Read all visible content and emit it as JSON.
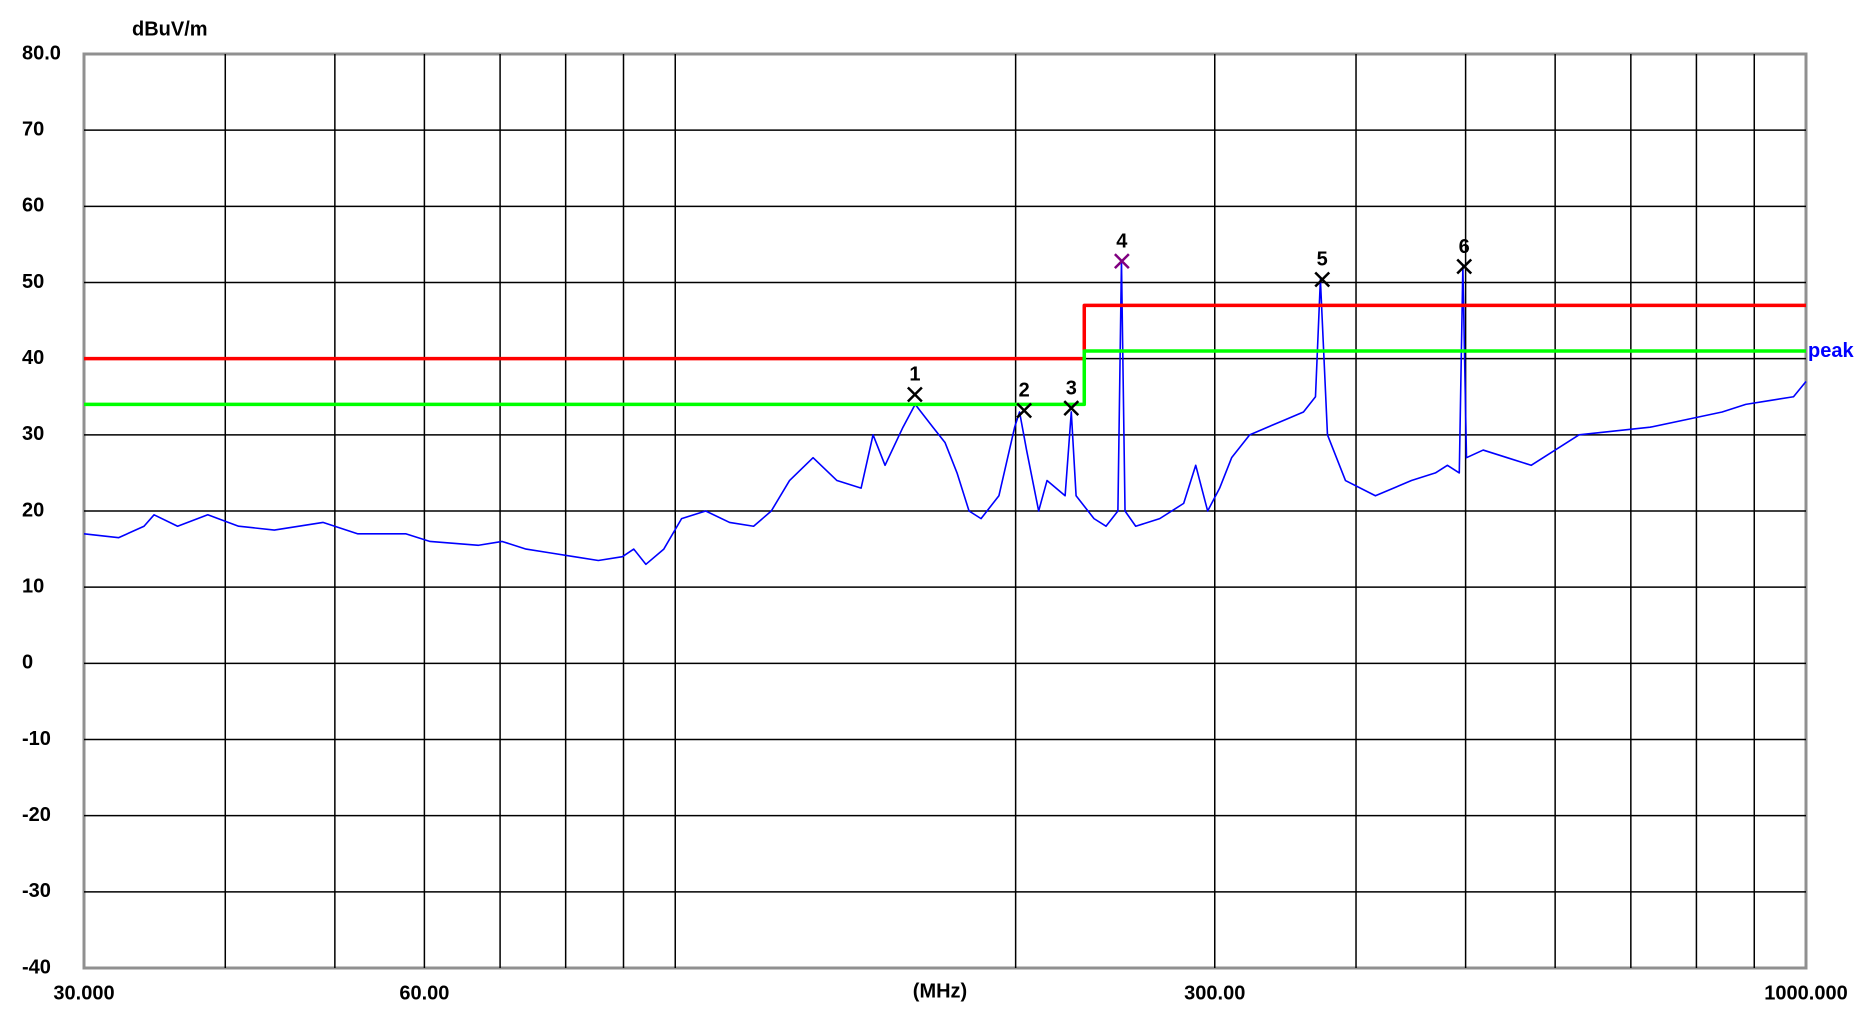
{
  "chart_data": {
    "type": "line",
    "y_label": "dBuV/m",
    "x_label": "(MHz)",
    "log_x": true,
    "xlim": [
      30,
      1000
    ],
    "ylim": [
      -40,
      80
    ],
    "xticks": [
      {
        "value": 30,
        "label": "30.000"
      },
      {
        "value": 60,
        "label": "60.00"
      },
      {
        "value": 300,
        "label": "300.00"
      },
      {
        "value": 1000,
        "label": "1000.000"
      }
    ],
    "xgrid": [
      40,
      50,
      60,
      70,
      80,
      90,
      100,
      200,
      300,
      400,
      500,
      600,
      700,
      800,
      900
    ],
    "yticks": [
      {
        "value": 80,
        "label": "80.0"
      },
      70,
      60,
      50,
      40,
      30,
      20,
      10,
      0,
      -10,
      -20,
      -30,
      -40
    ],
    "grid": true,
    "series": [
      {
        "name": "peak",
        "color": "#0000ff",
        "x": [
          30.0,
          32.2,
          33.9,
          34.6,
          36.3,
          38.6,
          41.1,
          44.2,
          48.8,
          52.4,
          57.8,
          60.7,
          67.0,
          70.3,
          73.8,
          77.5,
          81.4,
          85.5,
          89.8,
          91.9,
          94.2,
          97.7,
          101.3,
          106.4,
          111.7,
          117.3,
          121.6,
          126.2,
          132.4,
          139.0,
          146.0,
          149.6,
          153.3,
          159.0,
          163.0,
          169.0,
          173.2,
          177.5,
          181.9,
          186.4,
          193.3,
          199.6,
          201.6,
          204.5,
          209.6,
          213.2,
          221.2,
          224.0,
          226.2,
          234.6,
          240.4,
          246.3,
          248.1,
          249.9,
          255.4,
          268.2,
          281.6,
          288.6,
          295.7,
          303.0,
          310.5,
          322.1,
          334.0,
          346.5,
          359.4,
          368.3,
          372.0,
          377.4,
          391.5,
          416.1,
          447.8,
          470.2,
          481.8,
          493.6,
          497.2,
          500.9,
          518.2,
          544.2,
          571.4,
          600.0,
          630.0,
          676.5,
          728.0,
          783.5,
          843.0,
          884.5,
          928.6,
          974.9,
          1000
        ],
        "values": [
          17,
          16.5,
          18,
          19.5,
          18,
          19.5,
          18,
          17.5,
          18.5,
          17,
          17,
          16,
          15.5,
          16,
          15,
          14.5,
          14,
          13.5,
          14,
          15,
          13,
          15,
          19,
          20,
          18.5,
          18,
          20,
          24,
          27,
          24,
          23,
          30,
          26,
          31,
          34,
          31,
          29,
          25,
          20,
          19,
          22,
          31,
          33,
          28,
          20,
          24,
          22,
          33,
          22,
          19,
          18,
          20,
          52.8,
          20,
          18,
          19,
          21,
          26,
          20,
          23,
          27,
          30,
          31,
          32,
          33,
          35,
          50.4,
          30,
          24,
          22,
          24,
          25,
          26,
          25,
          52.1,
          27,
          28,
          27,
          26,
          28,
          30,
          30.5,
          31,
          32,
          33,
          34,
          34.5,
          35,
          37
        ]
      },
      {
        "color": "#ff0000",
        "x": [
          30,
          230,
          230,
          1000
        ],
        "values": [
          40,
          40,
          47,
          47
        ]
      },
      {
        "color": "#00ff00",
        "x": [
          30,
          230,
          230,
          1000
        ],
        "values": [
          34,
          34,
          41,
          41
        ]
      }
    ],
    "markers": {
      "labels": [
        "1",
        "2",
        "3",
        "4",
        "5",
        "6"
      ],
      "x": [
        162.9,
        203.5,
        224.0,
        248.3,
        373.4,
        498.6
      ],
      "values": [
        35.3,
        33.2,
        33.5,
        52.8,
        50.4,
        52.1
      ],
      "colors": [
        "#000000",
        "#000000",
        "#000000",
        "#800080",
        "#000000",
        "#000000"
      ]
    }
  }
}
